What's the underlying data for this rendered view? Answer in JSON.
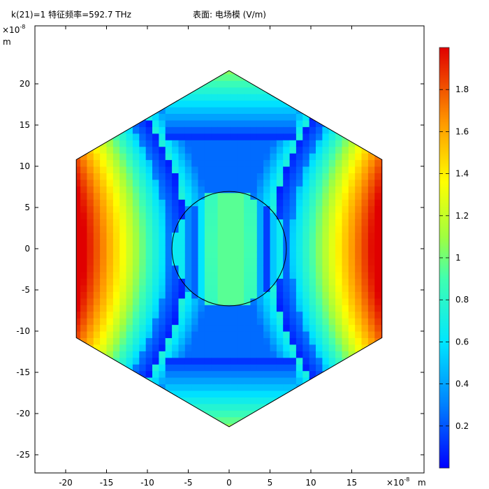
{
  "header": {
    "left_title": "k(21)=1 特征频率=592.7 THz",
    "center_title": "表面: 电场模 (V/m)"
  },
  "chart_data": {
    "type": "heatmap",
    "title": "表面: 电场模 (V/m)",
    "subtitle": "k(21)=1 特征频率=592.7 THz",
    "x_axis": {
      "unit": "m",
      "exponent": "×10⁻⁸",
      "range": [
        -24,
        24
      ],
      "ticks": [
        -20,
        -15,
        -10,
        -5,
        0,
        5,
        10,
        15
      ]
    },
    "y_axis": {
      "unit": "m",
      "exponent": "×10⁻⁸",
      "range": [
        -27.5,
        27
      ],
      "ticks": [
        -25,
        -20,
        -15,
        -10,
        -5,
        0,
        5,
        10,
        15,
        20
      ]
    },
    "geometry": {
      "hexagon_circumradius": 21.6,
      "hexagon_vertices": [
        [
          0,
          21.6
        ],
        [
          18.7,
          10.8
        ],
        [
          18.7,
          -10.8
        ],
        [
          0,
          -21.6
        ],
        [
          -18.7,
          -10.8
        ],
        [
          -18.7,
          10.8
        ]
      ],
      "circle_center": [
        0,
        0
      ],
      "circle_radius": 7
    },
    "field": {
      "quantity": "电场模",
      "unit": "V/m",
      "min": 0,
      "max": 2.0,
      "pattern": "maxima at left/right hexagon vertices (~2.0); near-zero blue bands at about x=±9 and near top/bottom corners; ~0.8-1.0 in cylinder center"
    },
    "colorbar": {
      "colormap": "rainbow (blue-cyan-green-yellow-red)",
      "ticks": [
        0.2,
        0.4,
        0.6,
        0.8,
        1,
        1.2,
        1.4,
        1.6,
        1.8
      ],
      "tick_labels": [
        "0.2",
        "0.4",
        "0.6",
        "0.8",
        "1",
        "1.2",
        "1.4",
        "1.6",
        "1.8"
      ],
      "range": [
        0,
        2.0
      ]
    },
    "grid": false
  }
}
